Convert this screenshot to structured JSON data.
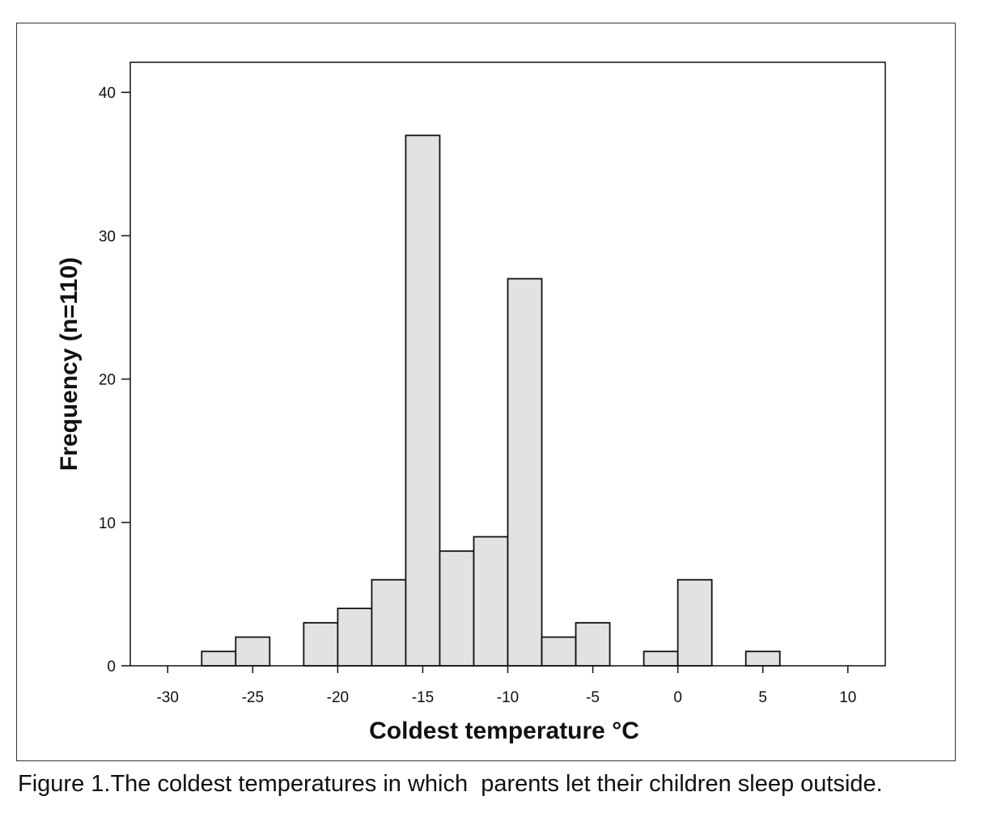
{
  "caption": "Figure 1.The coldest temperatures in which  parents let their children sleep outside.",
  "chart_data": {
    "type": "bar",
    "subtype": "histogram",
    "xlabel": "Coldest temperature °C",
    "ylabel": "Frequency (n=110)",
    "xlim": [
      -32.2,
      12.2
    ],
    "ylim": [
      0,
      42.1
    ],
    "x_ticks": [
      -30,
      -25,
      -20,
      -15,
      -10,
      -5,
      0,
      5,
      10
    ],
    "y_ticks": [
      0,
      10,
      20,
      30,
      40
    ],
    "bin_width": 2,
    "bins": [
      {
        "start": -28,
        "end": -26,
        "count": 1
      },
      {
        "start": -26,
        "end": -24,
        "count": 2
      },
      {
        "start": -22,
        "end": -20,
        "count": 3
      },
      {
        "start": -20,
        "end": -18,
        "count": 4
      },
      {
        "start": -18,
        "end": -16,
        "count": 6
      },
      {
        "start": -16,
        "end": -14,
        "count": 37
      },
      {
        "start": -14,
        "end": -12,
        "count": 8
      },
      {
        "start": -12,
        "end": -10,
        "count": 9
      },
      {
        "start": -10,
        "end": -8,
        "count": 27
      },
      {
        "start": -8,
        "end": -6,
        "count": 2
      },
      {
        "start": -6,
        "end": -4,
        "count": 3
      },
      {
        "start": -2,
        "end": 0,
        "count": 1
      },
      {
        "start": 0,
        "end": 2,
        "count": 6
      },
      {
        "start": 4,
        "end": 6,
        "count": 1
      }
    ],
    "bar_color": "#e2e2e2",
    "edge_color": "#111111",
    "grid": false,
    "legend": "none"
  }
}
